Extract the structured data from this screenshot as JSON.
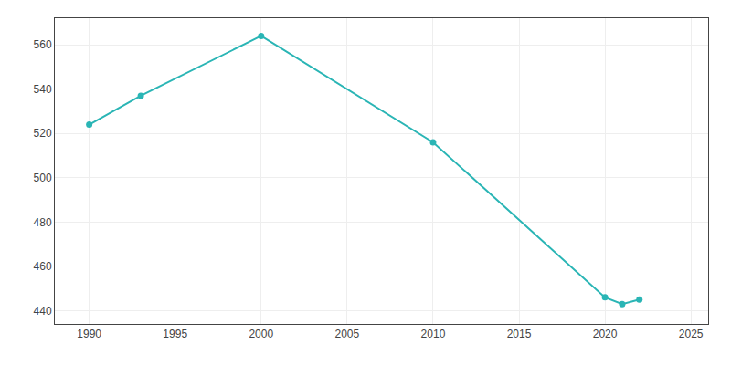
{
  "chart_data": {
    "type": "line",
    "x": [
      1990,
      1993,
      2000,
      2010,
      2020,
      2021,
      2022
    ],
    "values": [
      524,
      537,
      564,
      516,
      446,
      443,
      445
    ],
    "color": "#2ab5b5",
    "marker": "circle",
    "xlim": [
      1988,
      2026
    ],
    "ylim": [
      434,
      572
    ],
    "xticks": [
      1990,
      1995,
      2000,
      2005,
      2010,
      2015,
      2020,
      2025
    ],
    "yticks": [
      440,
      460,
      480,
      500,
      520,
      540,
      560
    ],
    "grid": true
  }
}
